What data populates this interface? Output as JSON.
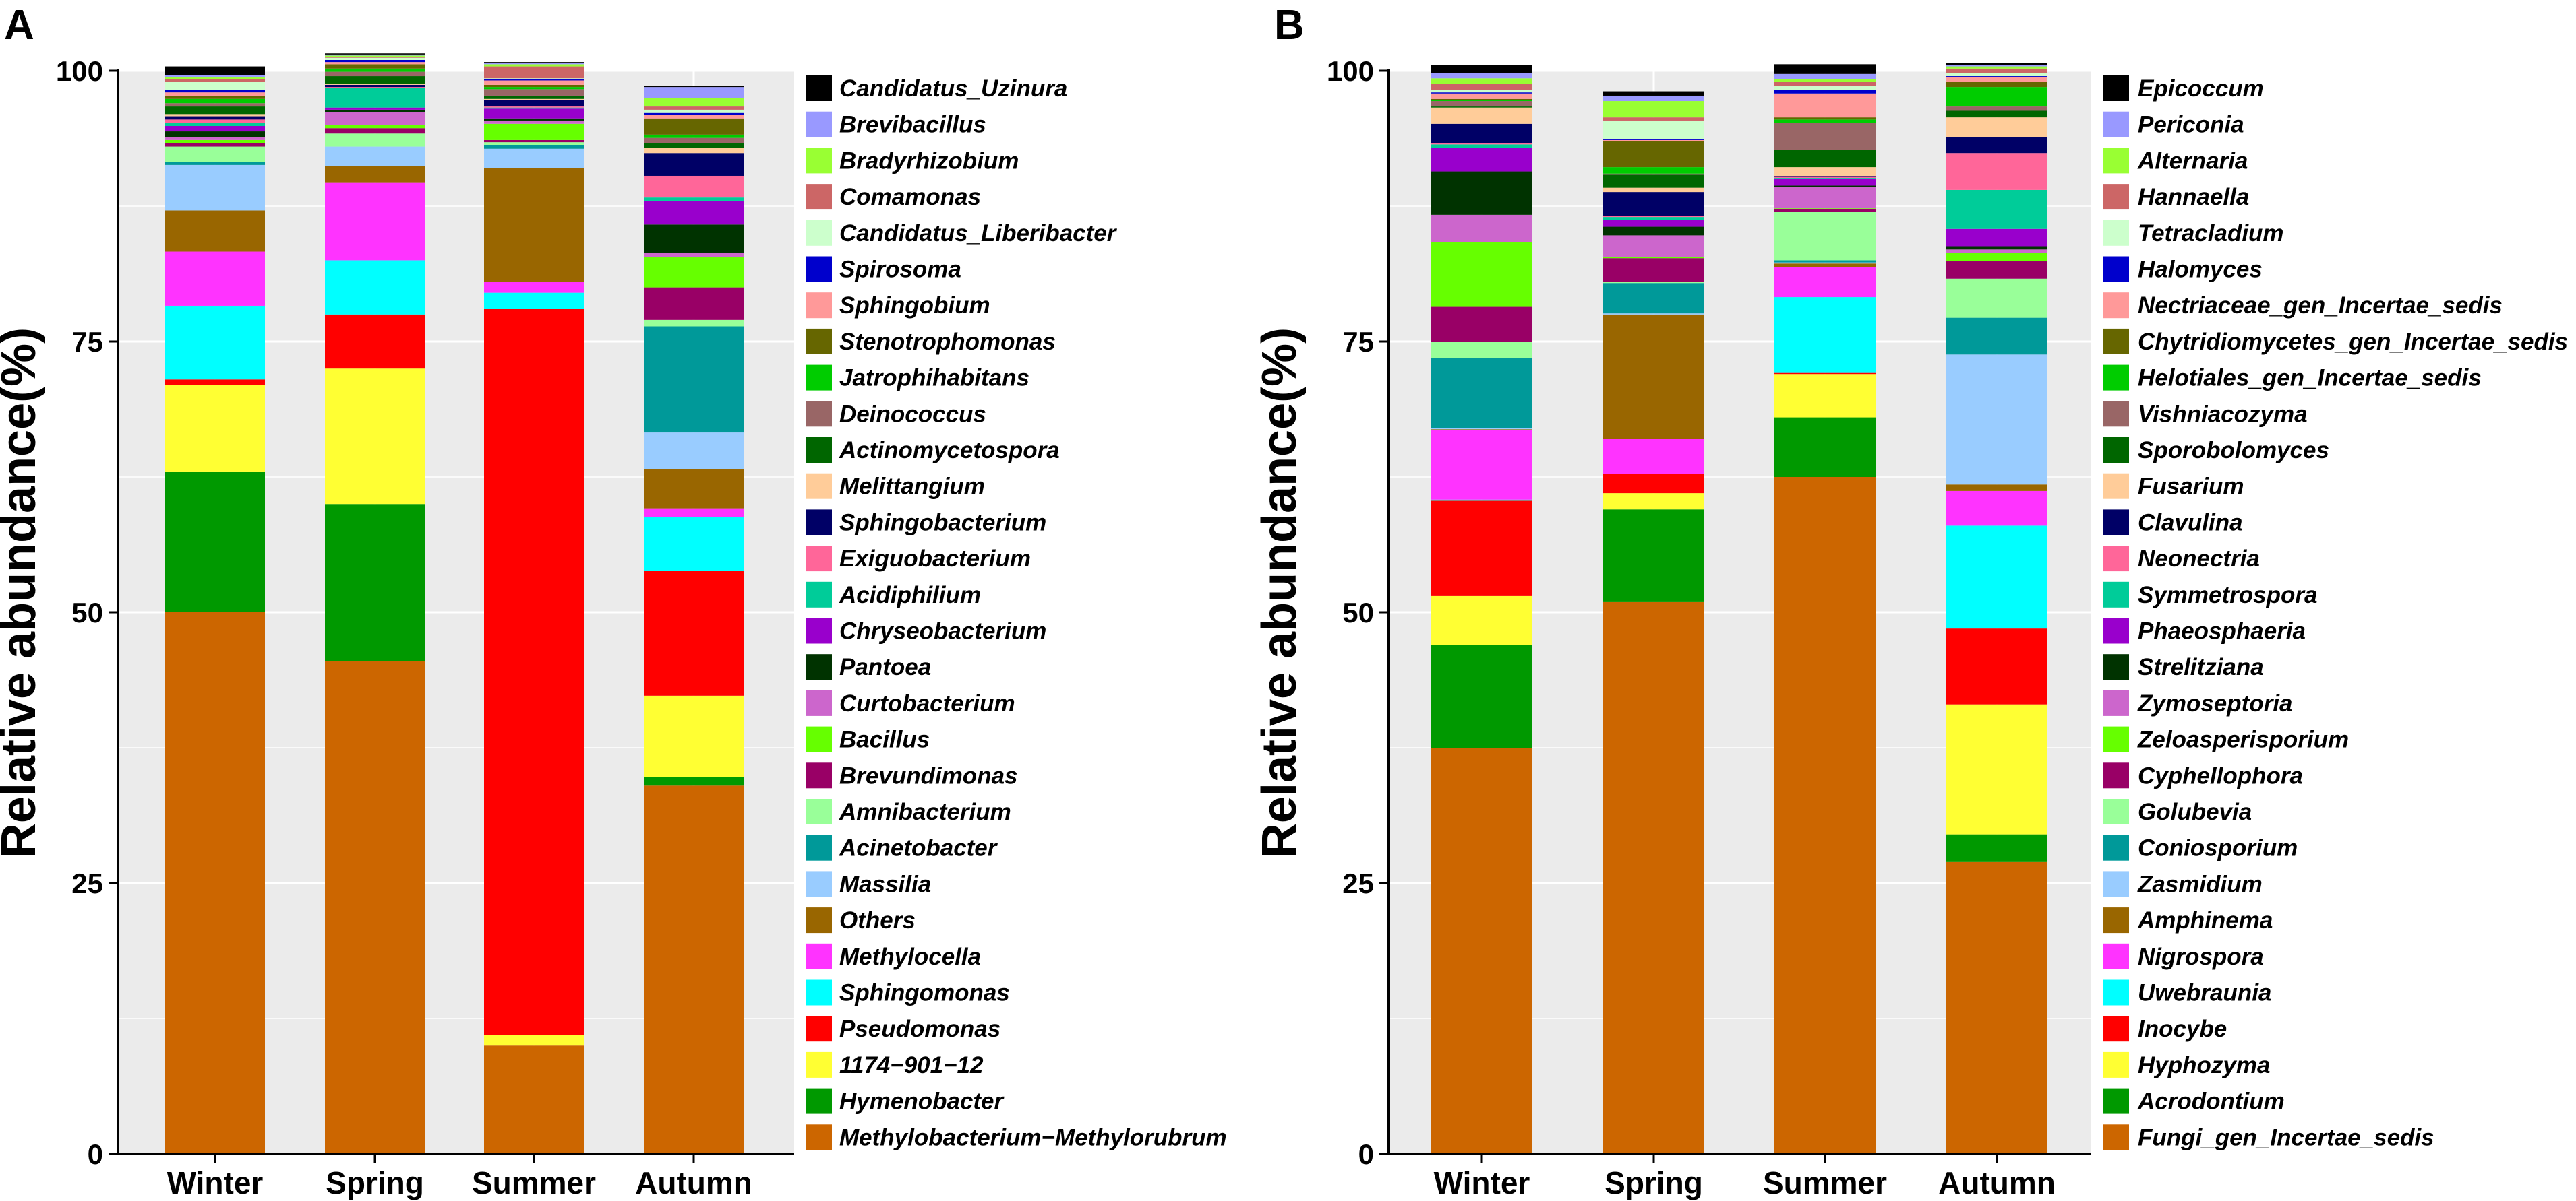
{
  "chart_data": [
    {
      "panel": "A",
      "type": "bar",
      "stacked": true,
      "title": "",
      "ylabel": "Relative abundance(%)",
      "xlabel": "",
      "ylim": [
        0,
        100
      ],
      "yticks": [
        0,
        25,
        50,
        75,
        100
      ],
      "categories": [
        "Winter",
        "Spring",
        "Summer",
        "Autumn"
      ],
      "series": [
        {
          "name": "Methylobacterium−Methylorubrum",
          "color": "#CC6600",
          "values": [
            50,
            45.5,
            10,
            34
          ]
        },
        {
          "name": "Hymenobacter",
          "color": "#009900",
          "values": [
            13,
            14.5,
            0,
            0.8
          ]
        },
        {
          "name": "1174−901−12",
          "color": "#FFFF33",
          "values": [
            8,
            12.5,
            1,
            7.5
          ]
        },
        {
          "name": "Pseudomonas",
          "color": "#FF0000",
          "values": [
            0.5,
            5,
            67,
            11.5
          ]
        },
        {
          "name": "Sphingomonas",
          "color": "#00FFFF",
          "values": [
            6.8,
            5,
            1.5,
            5
          ]
        },
        {
          "name": "Methylocella",
          "color": "#FF33FF",
          "values": [
            5,
            7.2,
            1,
            0.8
          ]
        },
        {
          "name": "Others",
          "color": "#996600",
          "values": [
            3.8,
            1.5,
            10.5,
            3.6
          ]
        },
        {
          "name": "Massilia",
          "color": "#99CCFF",
          "values": [
            4.2,
            1.8,
            1.8,
            3.4
          ]
        },
        {
          "name": "Acinetobacter",
          "color": "#009999",
          "values": [
            0.3,
            0,
            0.3,
            9.8
          ]
        },
        {
          "name": "Amnibacterium",
          "color": "#99FF99",
          "values": [
            1.4,
            1.2,
            0.3,
            0.6
          ]
        },
        {
          "name": "Brevundimonas",
          "color": "#990066",
          "values": [
            0.3,
            0.5,
            0.2,
            3
          ]
        },
        {
          "name": "Bacillus",
          "color": "#66FF00",
          "values": [
            0.3,
            0.3,
            1.5,
            2.8
          ]
        },
        {
          "name": "Curtobacterium",
          "color": "#CC66CC",
          "values": [
            0.3,
            1.2,
            0.3,
            0.4
          ]
        },
        {
          "name": "Pantoea",
          "color": "#003300",
          "values": [
            0.5,
            0.2,
            0.2,
            2.6
          ]
        },
        {
          "name": "Chryseobacterium",
          "color": "#9900CC",
          "values": [
            0.5,
            0.2,
            0.9,
            2.2
          ]
        },
        {
          "name": "Acidiphilium",
          "color": "#00CC99",
          "values": [
            0.3,
            1.8,
            0.1,
            0.3
          ]
        },
        {
          "name": "Exiguobacterium",
          "color": "#FF6699",
          "values": [
            0.3,
            0.1,
            0.1,
            2
          ]
        },
        {
          "name": "Sphingobacterium",
          "color": "#000066",
          "values": [
            0.3,
            0.2,
            0.6,
            2.1
          ]
        },
        {
          "name": "Melittangium",
          "color": "#FFCC99",
          "values": [
            0.2,
            0.1,
            0.1,
            0.5
          ]
        },
        {
          "name": "Actinomycetospora",
          "color": "#006600",
          "values": [
            0.7,
            0.7,
            0.3,
            0.4
          ]
        },
        {
          "name": "Deinococcus",
          "color": "#996666",
          "values": [
            0.3,
            0.4,
            0.6,
            0.5
          ]
        },
        {
          "name": "Jatrophihabitans",
          "color": "#00CC00",
          "values": [
            0.4,
            0.3,
            0.2,
            0.3
          ]
        },
        {
          "name": "Stenotrophomonas",
          "color": "#666600",
          "values": [
            0.3,
            0.4,
            0.2,
            1.5
          ]
        },
        {
          "name": "Sphingobium",
          "color": "#FF9999",
          "values": [
            0.3,
            0.2,
            0.4,
            0.3
          ]
        },
        {
          "name": "Spirosoma",
          "color": "#0000CC",
          "values": [
            0.2,
            0.2,
            0.1,
            0.2
          ]
        },
        {
          "name": "Candidatus_Liberibacter",
          "color": "#CCFFCC",
          "values": [
            0.8,
            0.2,
            0.1,
            0.3
          ]
        },
        {
          "name": "Comamonas",
          "color": "#CC6666",
          "values": [
            0.2,
            0.1,
            1.1,
            0.3
          ]
        },
        {
          "name": "Bradyrhizobium",
          "color": "#99FF33",
          "values": [
            0.2,
            0.1,
            0.2,
            0.8
          ]
        },
        {
          "name": "Brevibacillus",
          "color": "#9999FF",
          "values": [
            0.2,
            0.1,
            0.1,
            1
          ]
        },
        {
          "name": "Candidatus_Uzinura",
          "color": "#000000",
          "values": [
            0.8,
            0.1,
            0.1,
            0.1
          ]
        }
      ]
    },
    {
      "panel": "B",
      "type": "bar",
      "stacked": true,
      "title": "",
      "ylabel": "Relative abundance(%)",
      "xlabel": "",
      "ylim": [
        0,
        100
      ],
      "yticks": [
        0,
        25,
        50,
        75,
        100
      ],
      "categories": [
        "Winter",
        "Spring",
        "Summer",
        "Autumn"
      ],
      "series": [
        {
          "name": "Fungi_gen_Incertae_sedis",
          "color": "#CC6600",
          "values": [
            37.5,
            51,
            62.5,
            27
          ]
        },
        {
          "name": "Acrodontium",
          "color": "#009900",
          "values": [
            9.5,
            8.5,
            5.5,
            2.5
          ]
        },
        {
          "name": "Hyphozyma",
          "color": "#FFFF33",
          "values": [
            4.5,
            1.5,
            4,
            12
          ]
        },
        {
          "name": "Inocybe",
          "color": "#FF0000",
          "values": [
            8.8,
            1.8,
            0.1,
            7
          ]
        },
        {
          "name": "Uwebraunia",
          "color": "#00FFFF",
          "values": [
            0.1,
            0,
            7,
            9.5
          ]
        },
        {
          "name": "Nigrospora",
          "color": "#FF33FF",
          "values": [
            6.4,
            3.2,
            2.8,
            3.2
          ]
        },
        {
          "name": "Amphinema",
          "color": "#996600",
          "values": [
            0.1,
            11.5,
            0.3,
            0.6
          ]
        },
        {
          "name": "Zasmidium",
          "color": "#99CCFF",
          "values": [
            0.1,
            0.1,
            0.1,
            12
          ]
        },
        {
          "name": "Coniosporium",
          "color": "#009999",
          "values": [
            6.5,
            2.8,
            0.2,
            3.4
          ]
        },
        {
          "name": "Golubevia",
          "color": "#99FF99",
          "values": [
            1.5,
            0.1,
            4.5,
            3.6
          ]
        },
        {
          "name": "Cyphellophora",
          "color": "#990066",
          "values": [
            3.2,
            2.2,
            0.2,
            1.6
          ]
        },
        {
          "name": "Zeloasperisporium",
          "color": "#66FF00",
          "values": [
            6,
            0.1,
            0.1,
            0.8
          ]
        },
        {
          "name": "Zymoseptoria",
          "color": "#CC66CC",
          "values": [
            2.5,
            2,
            2,
            0.3
          ]
        },
        {
          "name": "Strelitziana",
          "color": "#003300",
          "values": [
            4,
            0.8,
            0.1,
            0.3
          ]
        },
        {
          "name": "Phaeosphaeria",
          "color": "#9900CC",
          "values": [
            2.2,
            0.6,
            0.6,
            1.6
          ]
        },
        {
          "name": "Symmetrospora",
          "color": "#00CC99",
          "values": [
            0.3,
            0.3,
            0.1,
            3.6
          ]
        },
        {
          "name": "Neonectria",
          "color": "#FF6699",
          "values": [
            0.1,
            0.1,
            0.1,
            3.4
          ]
        },
        {
          "name": "Clavulina",
          "color": "#000066",
          "values": [
            1.8,
            2.2,
            0.1,
            1.5
          ]
        },
        {
          "name": "Fusarium",
          "color": "#FFCC99",
          "values": [
            1.5,
            0.4,
            0.8,
            1.8
          ]
        },
        {
          "name": "Sporobolomyces",
          "color": "#006600",
          "values": [
            0.1,
            1.2,
            1.6,
            0.6
          ]
        },
        {
          "name": "Vishniacozyma",
          "color": "#996666",
          "values": [
            0.5,
            0.1,
            2.5,
            0.4
          ]
        },
        {
          "name": "Helotiales_gen_Incertae_sedis",
          "color": "#00CC00",
          "values": [
            0.1,
            0.6,
            0.3,
            1.8
          ]
        },
        {
          "name": "Chytridiomycetes_gen_Incertae_sedis",
          "color": "#666600",
          "values": [
            0.1,
            2.4,
            0.2,
            0.5
          ]
        },
        {
          "name": "Nectriaceae_gen_Incertae_sedis",
          "color": "#FF9999",
          "values": [
            0.5,
            0.1,
            2.2,
            0.4
          ]
        },
        {
          "name": "Halomyces",
          "color": "#0000CC",
          "values": [
            0.1,
            0.1,
            0.3,
            0.1
          ]
        },
        {
          "name": "Tetracladium",
          "color": "#CCFFCC",
          "values": [
            0.2,
            1.7,
            0.4,
            0.3
          ]
        },
        {
          "name": "Hannaella",
          "color": "#CC6666",
          "values": [
            0.6,
            0.3,
            0.4,
            0.4
          ]
        },
        {
          "name": "Alternaria",
          "color": "#99FF33",
          "values": [
            0.5,
            1.5,
            0.2,
            0.2
          ]
        },
        {
          "name": "Periconia",
          "color": "#9999FF",
          "values": [
            0.5,
            0.5,
            0.5,
            0.1
          ]
        },
        {
          "name": "Epicoccum",
          "color": "#000000",
          "values": [
            0.7,
            0.4,
            0.9,
            0.2
          ]
        }
      ]
    }
  ]
}
